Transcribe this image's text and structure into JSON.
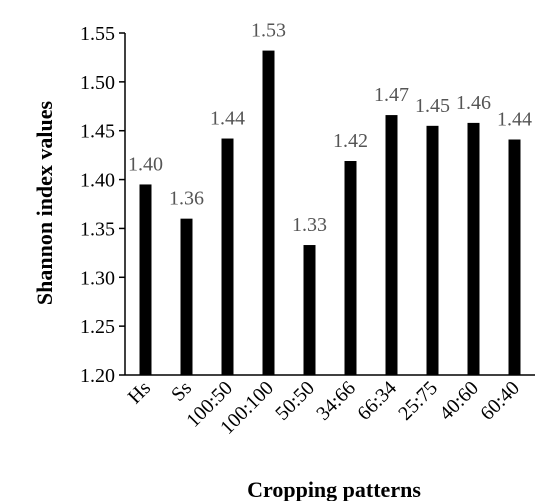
{
  "chart_data": {
    "type": "bar",
    "categories": [
      "Hs",
      "Ss",
      "100:50",
      "100:100",
      "50:50",
      "34:66",
      "66:34",
      "25:75",
      "40:60",
      "60:40"
    ],
    "values": [
      1.395,
      1.36,
      1.442,
      1.532,
      1.333,
      1.419,
      1.466,
      1.455,
      1.458,
      1.441
    ],
    "data_labels": [
      "1.40",
      "1.36",
      "1.44",
      "1.53",
      "1.33",
      "1.42",
      "1.47",
      "1.45",
      "1.46",
      "1.44"
    ],
    "title": "",
    "xlabel": "Cropping patterns",
    "ylabel": "Shannon index values",
    "ylim": [
      1.2,
      1.55
    ],
    "yticks": [
      "1.20",
      "1.25",
      "1.30",
      "1.35",
      "1.40",
      "1.45",
      "1.50",
      "1.55"
    ],
    "grid": false,
    "legend": "none",
    "bar_color": "#000000"
  }
}
